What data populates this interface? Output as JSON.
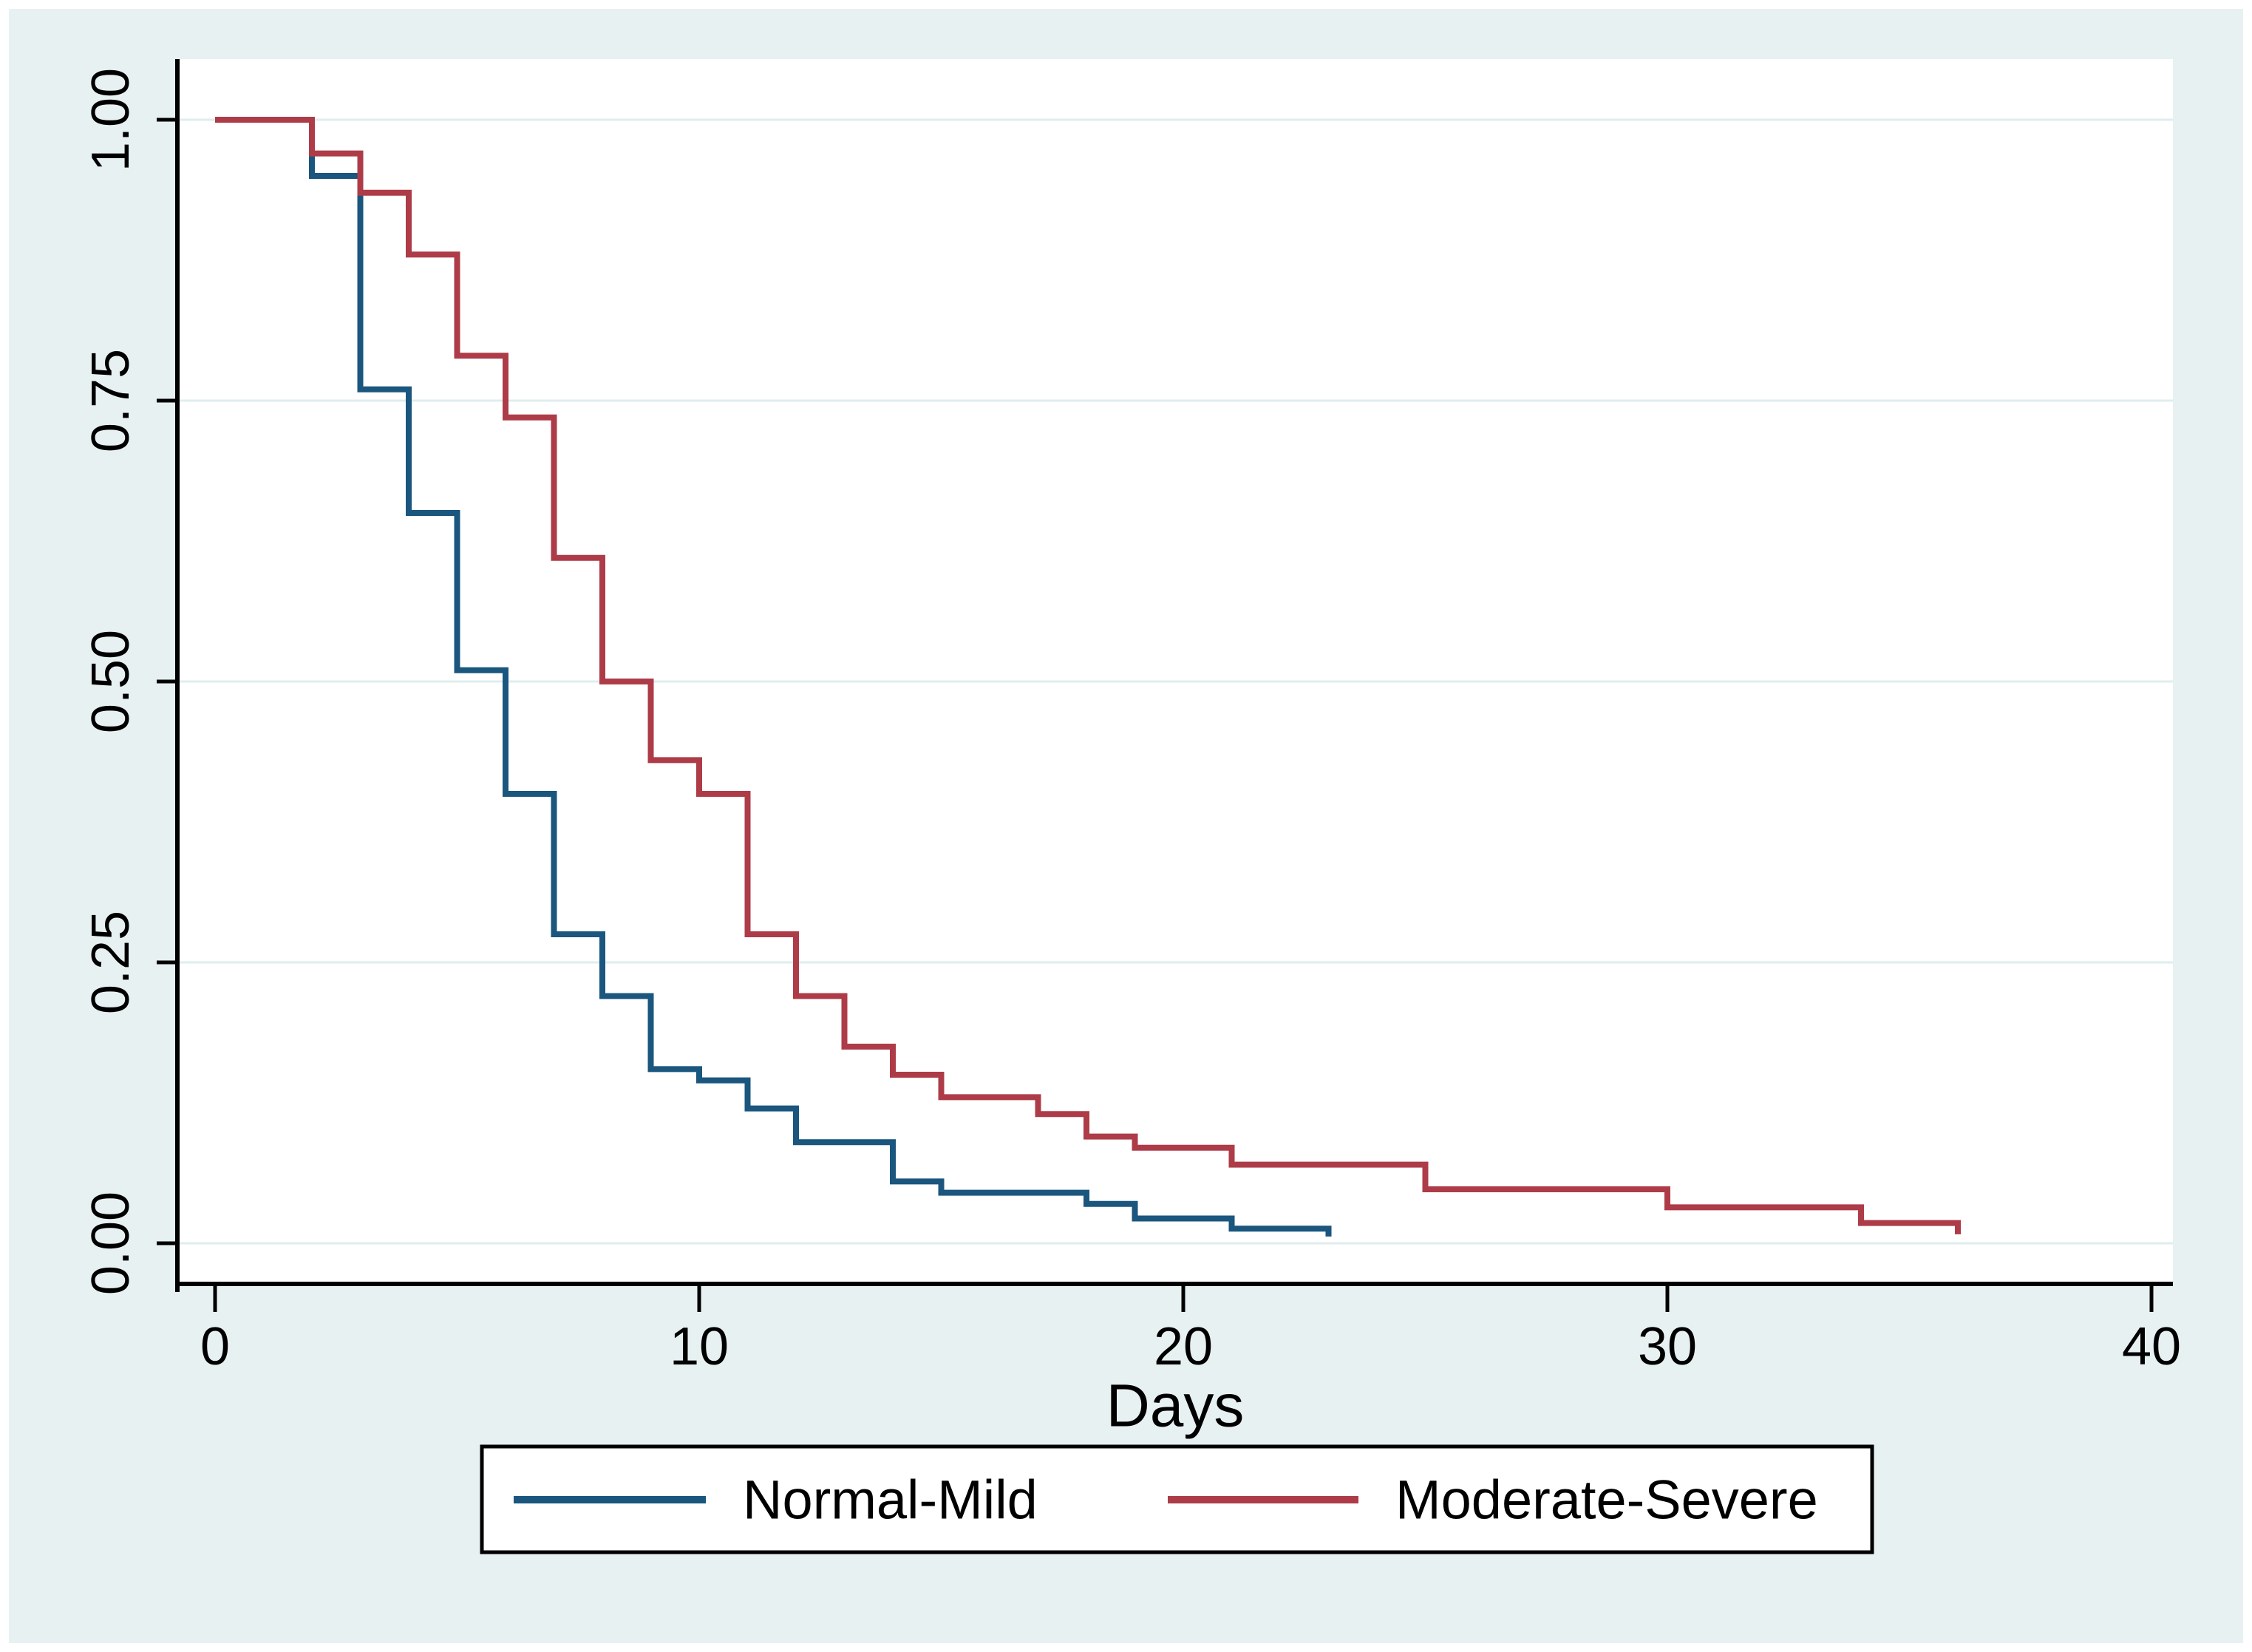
{
  "figure": {
    "outer_border_color": "#ffffff",
    "canvas_background": "#e8f1f2",
    "plot_background": "#ffffff",
    "gridline_color": "#dfedee",
    "axis_color": "#000000",
    "legend_border_color": "#000000",
    "legend_background": "#ffffff"
  },
  "chart_data": {
    "type": "line",
    "subtype": "kaplan-meier-step-survival",
    "title": "",
    "xlabel": "Days",
    "ylabel": "",
    "xlim": [
      0,
      40
    ],
    "ylim": [
      0.0,
      1.0
    ],
    "x_ticks": [
      "0",
      "10",
      "20",
      "30",
      "40"
    ],
    "y_ticks": [
      "0.00",
      "0.25",
      "0.50",
      "0.75",
      "1.00"
    ],
    "y_tick_values": [
      0.0,
      0.25,
      0.5,
      0.75,
      1.0
    ],
    "grid": "horizontal-only",
    "legend_position": "bottom-center",
    "series": [
      {
        "name": "Normal-Mild",
        "color": "#1a567e",
        "points_note": "each point = [day, survival probability after step at that day]",
        "points": [
          [
            0,
            1.0
          ],
          [
            2,
            0.95
          ],
          [
            3,
            0.76
          ],
          [
            4,
            0.65
          ],
          [
            5,
            0.51
          ],
          [
            6,
            0.4
          ],
          [
            7,
            0.275
          ],
          [
            8,
            0.22
          ],
          [
            9,
            0.155
          ],
          [
            10,
            0.145
          ],
          [
            11,
            0.12
          ],
          [
            12,
            0.09
          ],
          [
            14,
            0.055
          ],
          [
            15,
            0.045
          ],
          [
            18,
            0.035
          ],
          [
            19,
            0.022
          ],
          [
            21,
            0.013
          ],
          [
            23,
            0.006
          ]
        ]
      },
      {
        "name": "Moderate-Severe",
        "color": "#ad3c48",
        "points_note": "each point = [day, survival probability after step at that day]",
        "points": [
          [
            0,
            1.0
          ],
          [
            2,
            0.97
          ],
          [
            3,
            0.935
          ],
          [
            4,
            0.88
          ],
          [
            5,
            0.79
          ],
          [
            6,
            0.735
          ],
          [
            7,
            0.61
          ],
          [
            8,
            0.5
          ],
          [
            9,
            0.43
          ],
          [
            10,
            0.4
          ],
          [
            11,
            0.275
          ],
          [
            12,
            0.22
          ],
          [
            13,
            0.175
          ],
          [
            14,
            0.15
          ],
          [
            15,
            0.13
          ],
          [
            17,
            0.115
          ],
          [
            18,
            0.095
          ],
          [
            19,
            0.085
          ],
          [
            21,
            0.07
          ],
          [
            25,
            0.048
          ],
          [
            30,
            0.032
          ],
          [
            34,
            0.018
          ],
          [
            36,
            0.008
          ]
        ]
      }
    ]
  }
}
